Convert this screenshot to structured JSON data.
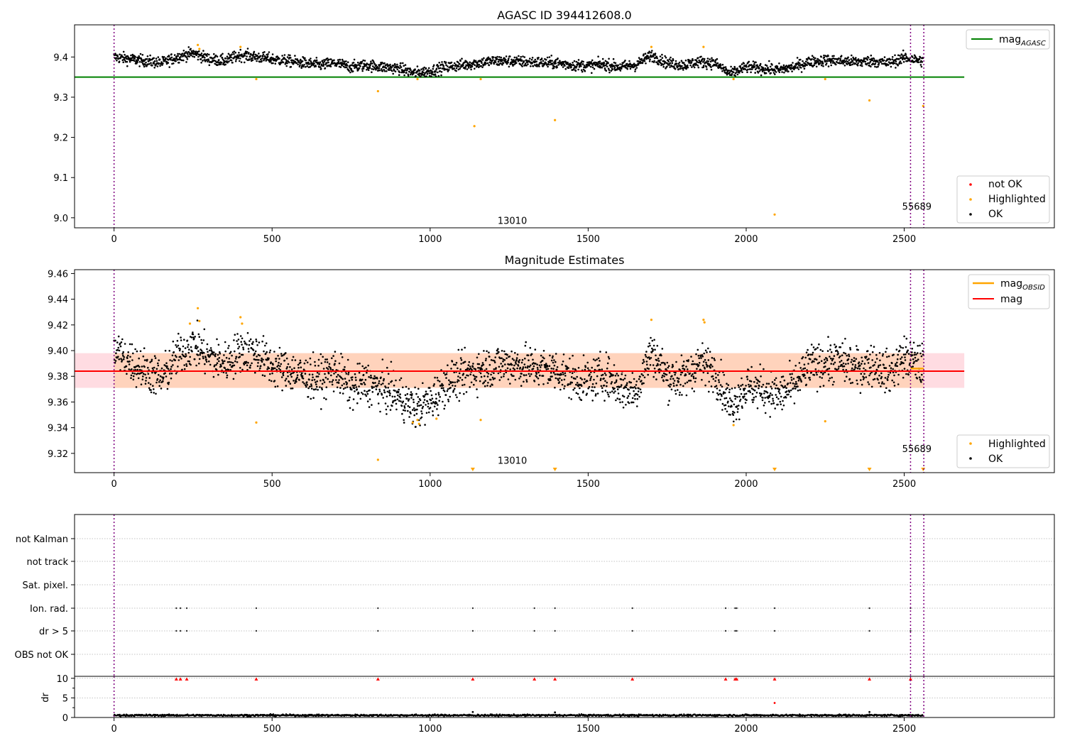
{
  "chart_data": [
    {
      "type": "scatter",
      "title": "AGASC ID 394412608.0",
      "xlabel": "",
      "ylabel": "",
      "xlim": [
        -125,
        2975
      ],
      "ylim": [
        8.975,
        9.48
      ],
      "xticks": [
        0,
        500,
        1000,
        1500,
        2000,
        2500
      ],
      "yticks": [
        9.0,
        9.1,
        9.2,
        9.3,
        9.4
      ],
      "ytick_labels": [
        "9.0",
        "9.1",
        "9.2",
        "9.3",
        "9.4"
      ],
      "grid": false,
      "mag_agasc": 9.35,
      "mag_agasc_xrange": [
        -125,
        2690
      ],
      "obs_boundaries": [
        0,
        2520,
        2562
      ],
      "annotations": [
        {
          "text": "13010",
          "x": 1260,
          "y": 8.985
        },
        {
          "text": "55689",
          "x": 2540,
          "y": 9.02
        }
      ],
      "ok_trend": [
        [
          0,
          9.4
        ],
        [
          50,
          9.395
        ],
        [
          100,
          9.39
        ],
        [
          150,
          9.385
        ],
        [
          200,
          9.4
        ],
        [
          250,
          9.41
        ],
        [
          300,
          9.395
        ],
        [
          350,
          9.39
        ],
        [
          400,
          9.405
        ],
        [
          450,
          9.4
        ],
        [
          500,
          9.395
        ],
        [
          550,
          9.39
        ],
        [
          600,
          9.385
        ],
        [
          650,
          9.38
        ],
        [
          700,
          9.385
        ],
        [
          750,
          9.375
        ],
        [
          800,
          9.38
        ],
        [
          850,
          9.375
        ],
        [
          900,
          9.372
        ],
        [
          950,
          9.36
        ],
        [
          1000,
          9.365
        ],
        [
          1050,
          9.375
        ],
        [
          1100,
          9.38
        ],
        [
          1150,
          9.385
        ],
        [
          1200,
          9.39
        ],
        [
          1250,
          9.39
        ],
        [
          1300,
          9.388
        ],
        [
          1350,
          9.386
        ],
        [
          1400,
          9.385
        ],
        [
          1450,
          9.38
        ],
        [
          1500,
          9.378
        ],
        [
          1550,
          9.382
        ],
        [
          1600,
          9.375
        ],
        [
          1650,
          9.38
        ],
        [
          1700,
          9.405
        ],
        [
          1750,
          9.385
        ],
        [
          1800,
          9.38
        ],
        [
          1850,
          9.388
        ],
        [
          1900,
          9.385
        ],
        [
          1950,
          9.358
        ],
        [
          2000,
          9.375
        ],
        [
          2050,
          9.372
        ],
        [
          2100,
          9.368
        ],
        [
          2150,
          9.375
        ],
        [
          2200,
          9.388
        ],
        [
          2250,
          9.392
        ],
        [
          2300,
          9.39
        ],
        [
          2350,
          9.388
        ],
        [
          2400,
          9.39
        ],
        [
          2450,
          9.385
        ],
        [
          2500,
          9.398
        ],
        [
          2560,
          9.39
        ]
      ],
      "ok_scatter_amplitude": 0.014,
      "highlighted_points": [
        [
          265,
          9.43
        ],
        [
          270,
          9.42
        ],
        [
          400,
          9.425
        ],
        [
          450,
          9.345
        ],
        [
          835,
          9.315
        ],
        [
          960,
          9.345
        ],
        [
          1140,
          9.228
        ],
        [
          1160,
          9.345
        ],
        [
          1395,
          9.243
        ],
        [
          1700,
          9.425
        ],
        [
          1865,
          9.425
        ],
        [
          1960,
          9.345
        ],
        [
          2090,
          9.008
        ],
        [
          2250,
          9.345
        ],
        [
          2390,
          9.292
        ],
        [
          2560,
          9.278
        ]
      ],
      "legend": {
        "top": [
          "mag_AGASC"
        ],
        "bottom": [
          "not OK",
          "Highlighted",
          "OK"
        ]
      },
      "colors": {
        "ok": "#000000",
        "highlighted": "#ffa500",
        "not_ok": "#ff0000",
        "mag_agasc": "#008000",
        "obs": "#800080"
      }
    },
    {
      "type": "scatter",
      "title": "Magnitude Estimates",
      "xlabel": "",
      "ylabel": "",
      "xlim": [
        -125,
        2975
      ],
      "ylim": [
        9.305,
        9.463
      ],
      "xticks": [
        0,
        500,
        1000,
        1500,
        2000,
        2500
      ],
      "yticks": [
        9.32,
        9.34,
        9.36,
        9.38,
        9.4,
        9.42,
        9.44,
        9.46
      ],
      "ytick_labels": [
        "9.32",
        "9.34",
        "9.36",
        "9.38",
        "9.40",
        "9.42",
        "9.44",
        "9.46"
      ],
      "grid": false,
      "mag": 9.384,
      "mag_band": [
        9.371,
        9.398
      ],
      "mag_obsid": 9.386,
      "mag_obsid_xrange": [
        2520,
        2562
      ],
      "band_xrange": [
        -125,
        2690
      ],
      "obs_boundaries": [
        0,
        2520,
        2562
      ],
      "annotations": [
        {
          "text": "13010",
          "x": 1260,
          "y": 9.312
        },
        {
          "text": "55689",
          "x": 2540,
          "y": 9.321
        }
      ],
      "ok_trend": [
        [
          0,
          9.4
        ],
        [
          50,
          9.392
        ],
        [
          100,
          9.385
        ],
        [
          150,
          9.378
        ],
        [
          200,
          9.395
        ],
        [
          250,
          9.405
        ],
        [
          300,
          9.395
        ],
        [
          350,
          9.39
        ],
        [
          400,
          9.4
        ],
        [
          450,
          9.398
        ],
        [
          500,
          9.388
        ],
        [
          550,
          9.385
        ],
        [
          600,
          9.38
        ],
        [
          650,
          9.378
        ],
        [
          700,
          9.385
        ],
        [
          750,
          9.37
        ],
        [
          800,
          9.375
        ],
        [
          850,
          9.37
        ],
        [
          900,
          9.365
        ],
        [
          950,
          9.355
        ],
        [
          1000,
          9.36
        ],
        [
          1050,
          9.375
        ],
        [
          1100,
          9.38
        ],
        [
          1150,
          9.385
        ],
        [
          1200,
          9.388
        ],
        [
          1250,
          9.39
        ],
        [
          1300,
          9.388
        ],
        [
          1350,
          9.386
        ],
        [
          1400,
          9.385
        ],
        [
          1450,
          9.378
        ],
        [
          1500,
          9.376
        ],
        [
          1550,
          9.382
        ],
        [
          1600,
          9.372
        ],
        [
          1650,
          9.368
        ],
        [
          1700,
          9.4
        ],
        [
          1750,
          9.38
        ],
        [
          1800,
          9.378
        ],
        [
          1850,
          9.39
        ],
        [
          1900,
          9.385
        ],
        [
          1950,
          9.357
        ],
        [
          2000,
          9.372
        ],
        [
          2050,
          9.37
        ],
        [
          2100,
          9.365
        ],
        [
          2150,
          9.372
        ],
        [
          2200,
          9.388
        ],
        [
          2250,
          9.39
        ],
        [
          2300,
          9.392
        ],
        [
          2350,
          9.386
        ],
        [
          2400,
          9.39
        ],
        [
          2450,
          9.382
        ],
        [
          2500,
          9.395
        ],
        [
          2560,
          9.388
        ]
      ],
      "ok_scatter_amplitude": 0.016,
      "highlighted_points": [
        [
          240,
          9.421
        ],
        [
          265,
          9.433
        ],
        [
          270,
          9.423
        ],
        [
          400,
          9.426
        ],
        [
          405,
          9.421
        ],
        [
          450,
          9.344
        ],
        [
          835,
          9.315
        ],
        [
          945,
          9.344
        ],
        [
          960,
          9.346
        ],
        [
          965,
          9.343
        ],
        [
          1020,
          9.347
        ],
        [
          1160,
          9.346
        ],
        [
          1700,
          9.424
        ],
        [
          1865,
          9.424
        ],
        [
          1868,
          9.422
        ],
        [
          1960,
          9.342
        ],
        [
          2250,
          9.345
        ]
      ],
      "highlighted_below_range": [
        1135,
        1395,
        2090,
        2390,
        2560
      ],
      "legend": {
        "top": [
          "mag_OBSID",
          "mag"
        ],
        "bottom": [
          "Highlighted",
          "OK"
        ]
      },
      "colors": {
        "ok": "#000000",
        "highlighted": "#ffa500",
        "mag": "#ff0000",
        "band": "#ffc0cb",
        "band_overlap": "#ffd1b3",
        "mag_obsid": "#ffa500",
        "obs": "#800080"
      }
    },
    {
      "type": "scatter",
      "title": "",
      "xlabel": "",
      "ylabel": "",
      "xlim": [
        -125,
        2975
      ],
      "xticks": [
        0,
        500,
        1000,
        1500,
        2000,
        2500
      ],
      "flag_rows": [
        "not Kalman",
        "not track",
        "Sat. pixel.",
        "Ion. rad.",
        "dr > 5",
        "OBS not OK"
      ],
      "flag_points": {
        "Ion. rad.": [
          197,
          210,
          230,
          450,
          835,
          1135,
          1330,
          1395,
          1640,
          1935,
          1965,
          1970,
          2090,
          2390,
          2520
        ],
        "dr > 5": [
          197,
          210,
          230,
          450,
          835,
          1135,
          1330,
          1395,
          1640,
          1935,
          1965,
          1970,
          2090,
          2390,
          2520
        ]
      },
      "obs_boundaries": [
        0,
        2520,
        2562
      ],
      "colors": {
        "flag": "#333333",
        "obs": "#800080",
        "grid": "#b0b0b0"
      }
    },
    {
      "type": "scatter",
      "title": "",
      "xlabel": "",
      "ylabel": "dr",
      "xlim": [
        -125,
        2975
      ],
      "ylim": [
        0,
        10.5
      ],
      "xticks": [
        0,
        500,
        1000,
        1500,
        2000,
        2500
      ],
      "yticks": [
        0,
        5,
        10
      ],
      "ytick_labels": [
        "0",
        "5",
        "10"
      ],
      "grid": true,
      "dr_baseline": 0.55,
      "dr_capped_points": [
        197,
        210,
        230,
        450,
        835,
        1135,
        1330,
        1395,
        1640,
        1935,
        1965,
        1970,
        2090,
        2390,
        2520
      ],
      "dr_cap_value": 9.8,
      "dr_extra_points": [
        [
          2090,
          3.7
        ],
        [
          1135,
          1.4
        ],
        [
          1395,
          1.3
        ],
        [
          2390,
          1.4
        ]
      ],
      "obs_boundaries": [
        0,
        2520,
        2562
      ],
      "colors": {
        "ok": "#000000",
        "flagged": "#ff0000",
        "obs": "#800080"
      }
    }
  ]
}
